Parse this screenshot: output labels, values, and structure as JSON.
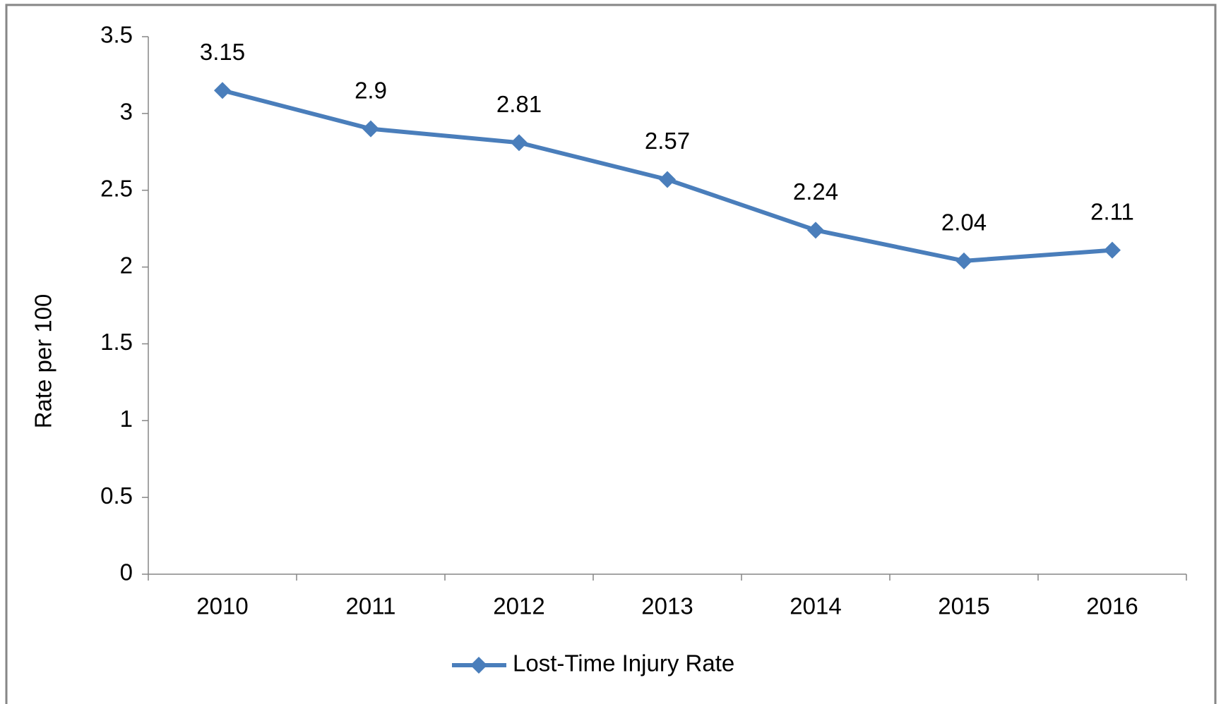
{
  "chart_data": {
    "type": "line",
    "y_label": "Rate per 100",
    "categories": [
      "2010",
      "2011",
      "2012",
      "2013",
      "2014",
      "2015",
      "2016"
    ],
    "series": [
      {
        "name": "Lost-Time Injury Rate",
        "color": "#4a7ebb",
        "values": [
          3.15,
          2.9,
          2.81,
          2.57,
          2.24,
          2.04,
          2.11
        ]
      }
    ],
    "ylim": [
      0,
      3.5
    ],
    "yticks": [
      0,
      0.5,
      1,
      1.5,
      2,
      2.5,
      3,
      3.5
    ],
    "grid": false,
    "legend": "bottom"
  }
}
